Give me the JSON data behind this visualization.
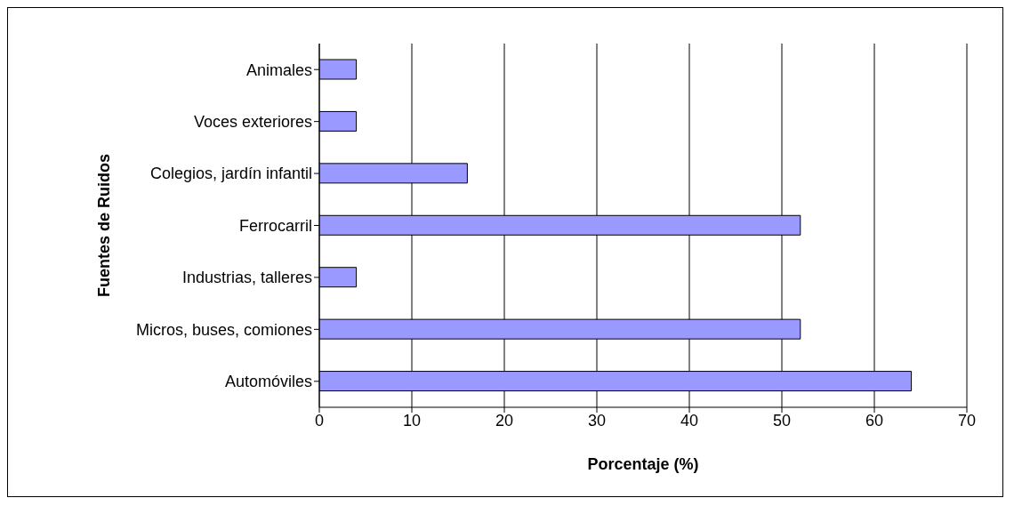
{
  "chart_data": {
    "type": "bar",
    "orientation": "horizontal",
    "xlabel": "Porcentaje (%)",
    "ylabel": "Fuentes de Ruidos",
    "categories": [
      "Animales",
      "Voces exteriores",
      "Colegios, jardín infantil",
      "Ferrocarril",
      "Industrias, talleres",
      "Micros, buses, comiones",
      "Automóviles"
    ],
    "values": [
      4,
      4,
      16,
      52,
      4,
      52,
      64
    ],
    "color": "#9999ff",
    "xlim": [
      0,
      70
    ],
    "xticks": [
      0,
      10,
      20,
      30,
      40,
      50,
      60,
      70
    ],
    "grid": "x",
    "legend": false
  }
}
